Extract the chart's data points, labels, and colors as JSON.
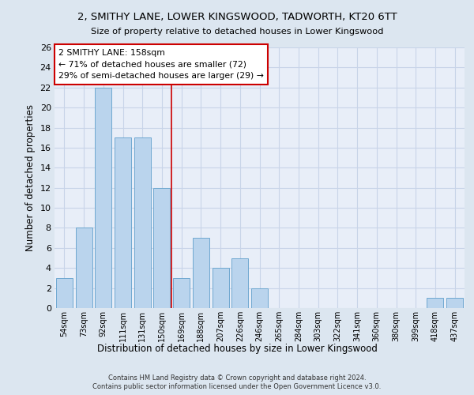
{
  "title_line1": "2, SMITHY LANE, LOWER KINGSWOOD, TADWORTH, KT20 6TT",
  "title_line2": "Size of property relative to detached houses in Lower Kingswood",
  "xlabel": "Distribution of detached houses by size in Lower Kingswood",
  "ylabel": "Number of detached properties",
  "categories": [
    "54sqm",
    "73sqm",
    "92sqm",
    "111sqm",
    "131sqm",
    "150sqm",
    "169sqm",
    "188sqm",
    "207sqm",
    "226sqm",
    "246sqm",
    "265sqm",
    "284sqm",
    "303sqm",
    "322sqm",
    "341sqm",
    "360sqm",
    "380sqm",
    "399sqm",
    "418sqm",
    "437sqm"
  ],
  "values": [
    3,
    8,
    22,
    17,
    17,
    12,
    3,
    7,
    4,
    5,
    2,
    0,
    0,
    0,
    0,
    0,
    0,
    0,
    0,
    1,
    1
  ],
  "bar_color": "#bad4ed",
  "bar_edge_color": "#6fa8d0",
  "vline_x": 5.5,
  "vline_color": "#cc0000",
  "annotation_text": "2 SMITHY LANE: 158sqm\n← 71% of detached houses are smaller (72)\n29% of semi-detached houses are larger (29) →",
  "annotation_box_facecolor": "#ffffff",
  "annotation_box_edgecolor": "#cc0000",
  "ylim": [
    0,
    26
  ],
  "yticks": [
    0,
    2,
    4,
    6,
    8,
    10,
    12,
    14,
    16,
    18,
    20,
    22,
    24,
    26
  ],
  "background_color": "#dce6f0",
  "plot_background_color": "#e8eef8",
  "grid_color": "#c8d4e8",
  "footer_line1": "Contains HM Land Registry data © Crown copyright and database right 2024.",
  "footer_line2": "Contains public sector information licensed under the Open Government Licence v3.0."
}
